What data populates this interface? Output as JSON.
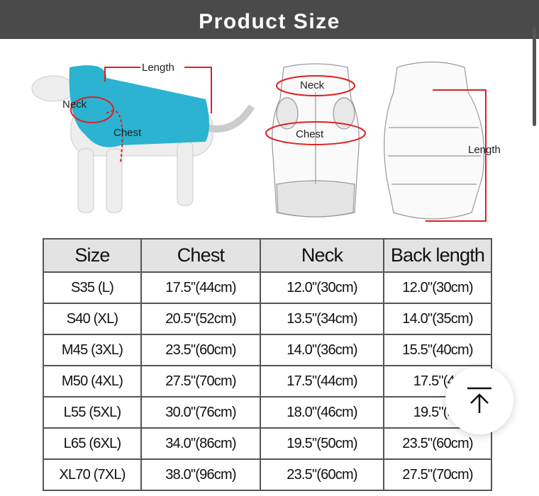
{
  "header": {
    "title": "Product Size"
  },
  "illustration": {
    "labels": {
      "length": "Length",
      "neck": "Neck",
      "chest": "Chest"
    },
    "accent_color": "#e02020",
    "vest_color": "#2bb3d1"
  },
  "table": {
    "headers": [
      "Size",
      "Chest",
      "Neck",
      "Back length"
    ],
    "rows": [
      [
        "S35 (L)",
        "17.5\"(44cm)",
        "12.0\"(30cm)",
        "12.0\"(30cm)"
      ],
      [
        "S40 (XL)",
        "20.5\"(52cm)",
        "13.5\"(34cm)",
        "14.0\"(35cm)"
      ],
      [
        "M45 (3XL)",
        "23.5\"(60cm)",
        "14.0\"(36cm)",
        "15.5\"(40cm)"
      ],
      [
        "M50 (4XL)",
        "27.5\"(70cm)",
        "17.5\"(44cm)",
        "17.5\"(45"
      ],
      [
        "L55 (5XL)",
        "30.0\"(76cm)",
        "18.0\"(46cm)",
        "19.5\"(50"
      ],
      [
        "L65 (6XL)",
        "34.0\"(86cm)",
        "19.5\"(50cm)",
        "23.5\"(60cm)"
      ],
      [
        "XL70 (7XL)",
        "38.0\"(96cm)",
        "23.5\"(60cm)",
        "27.5\"(70cm)"
      ]
    ]
  },
  "scroll_top": {
    "icon": "arrow-up-to-top-icon"
  }
}
